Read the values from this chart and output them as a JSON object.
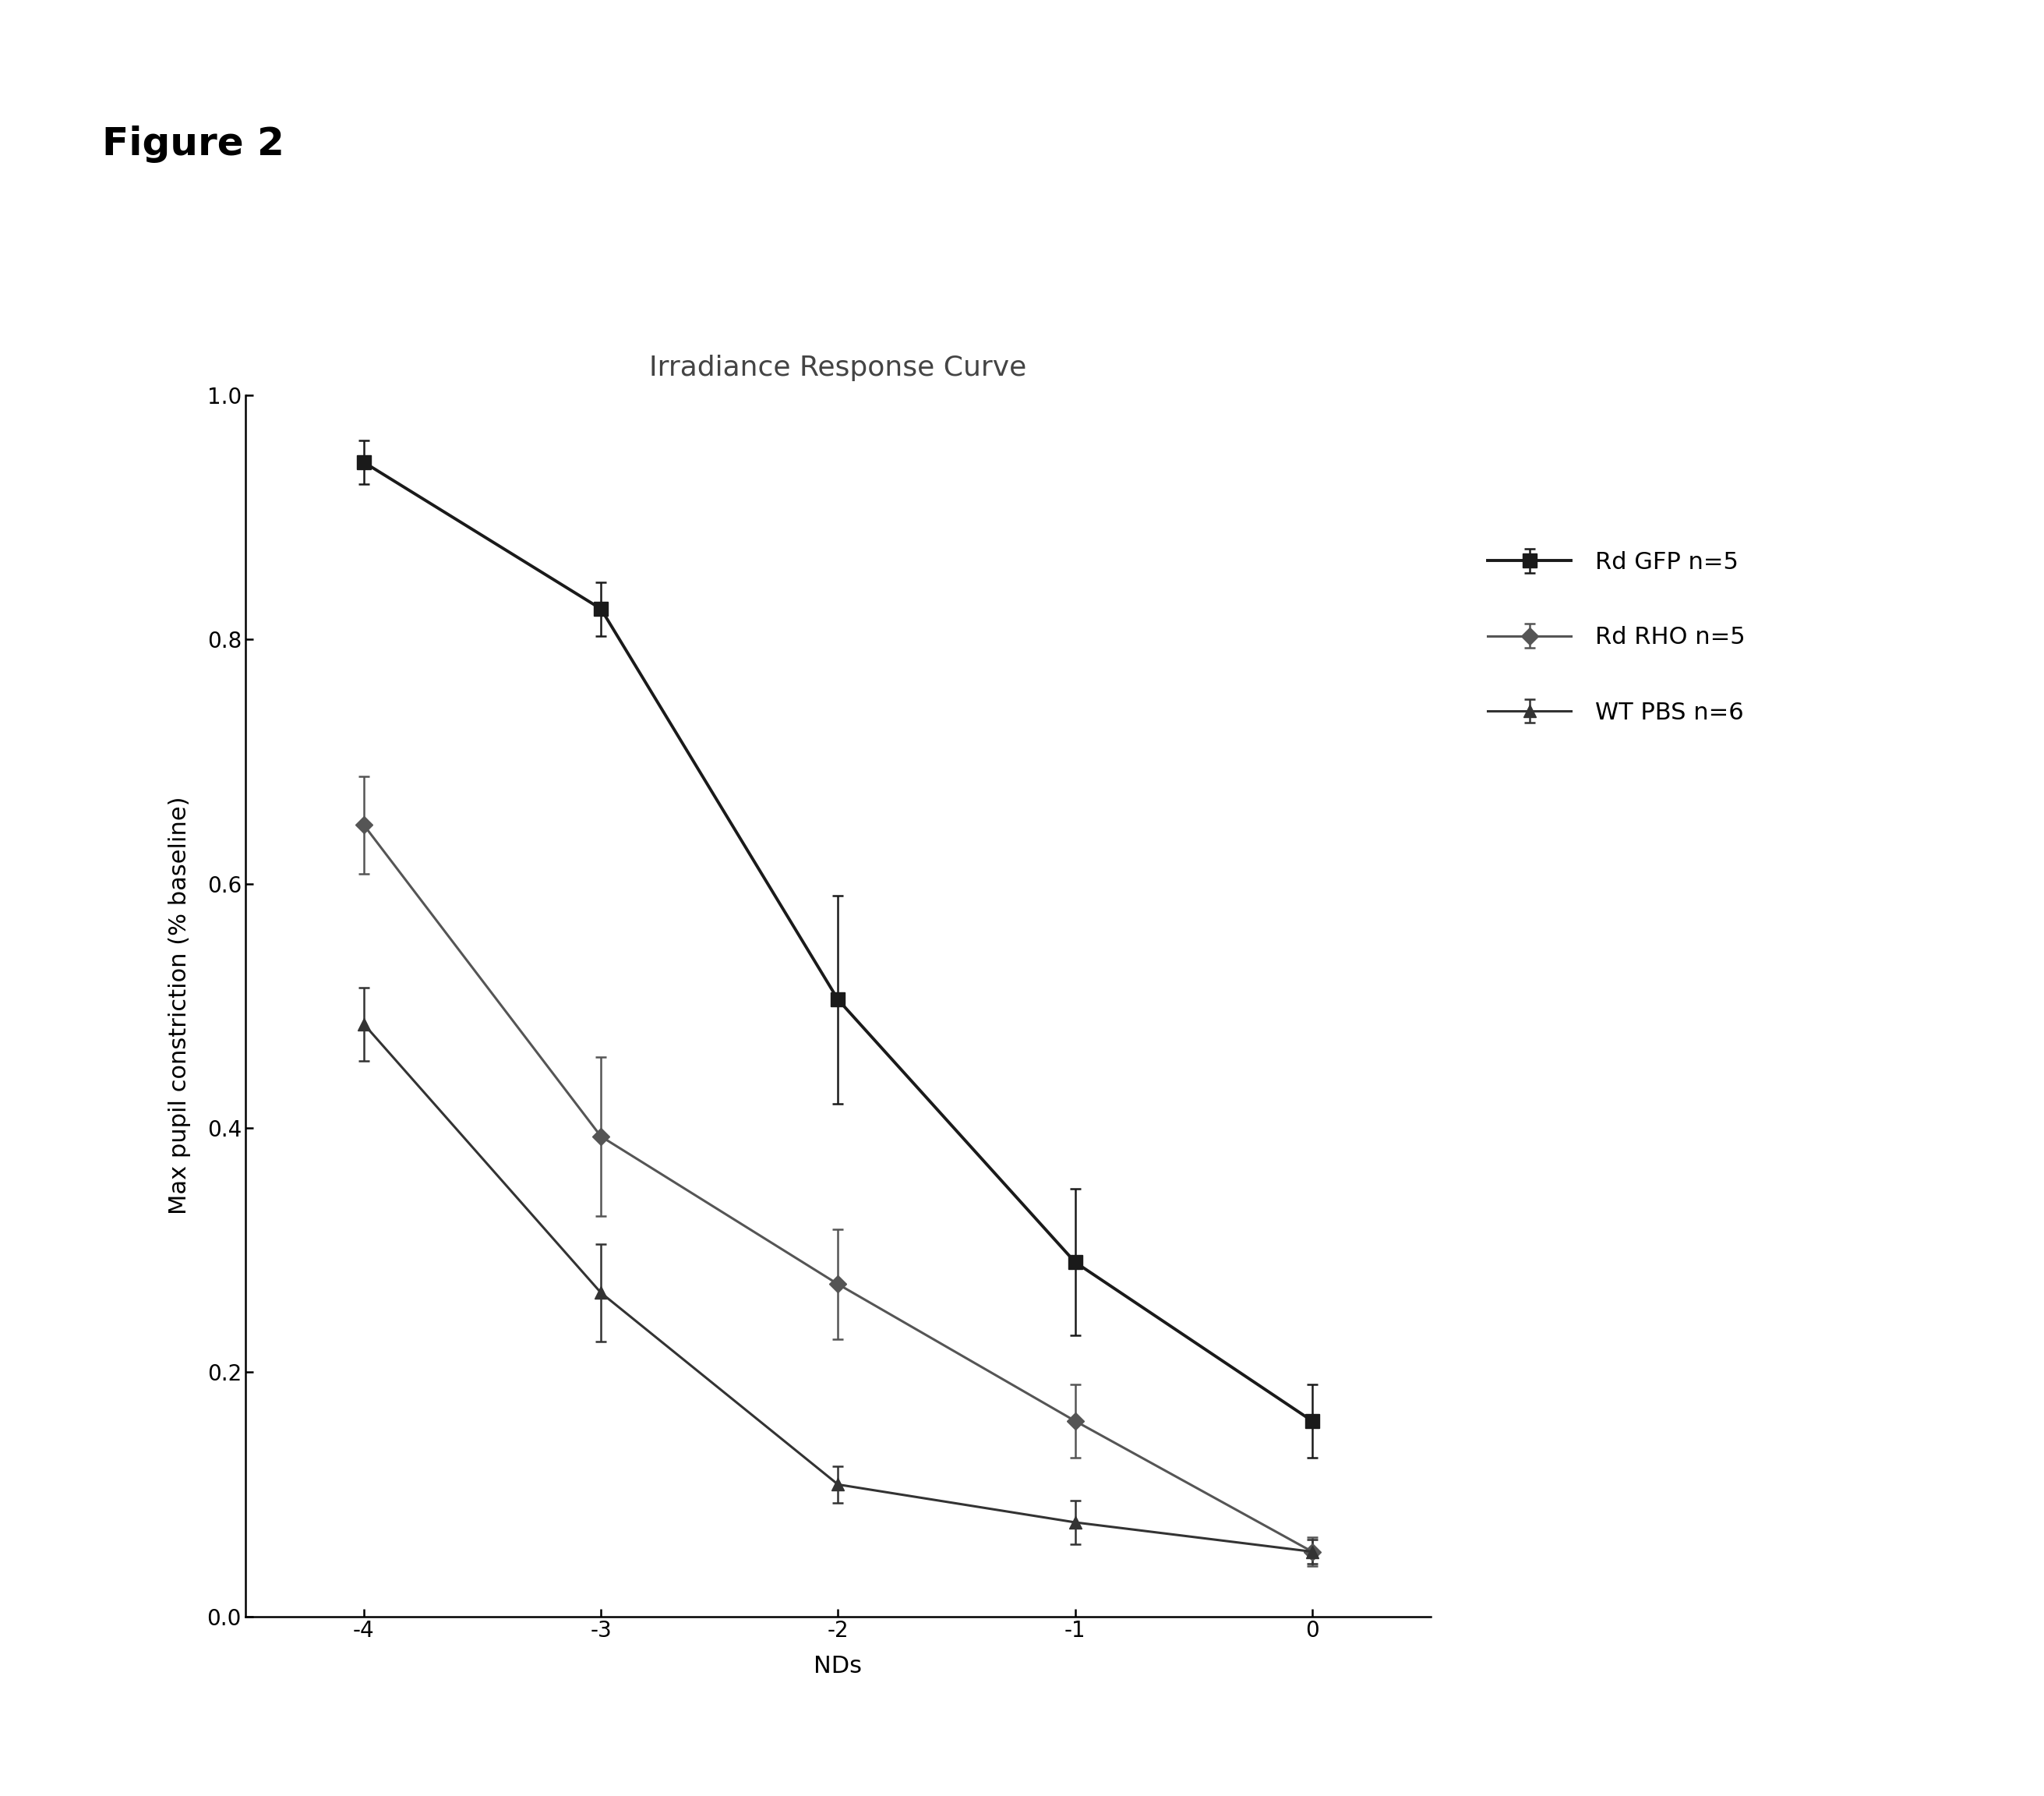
{
  "title": "Irradiance Response Curve",
  "figure_label": "Figure 2",
  "xlabel": "NDs",
  "ylabel": "Max pupil constriction (% baseline)",
  "x": [
    -4,
    -3,
    -2,
    -1,
    0
  ],
  "series": [
    {
      "label": "Rd GFP n=5",
      "y": [
        0.945,
        0.825,
        0.505,
        0.29,
        0.16
      ],
      "yerr": [
        0.018,
        0.022,
        0.085,
        0.06,
        0.03
      ],
      "color": "#1a1a1a",
      "marker": "s",
      "marker_size": 13,
      "linewidth": 2.8,
      "linestyle": "-"
    },
    {
      "label": "Rd RHO n=5",
      "y": [
        0.648,
        0.393,
        0.272,
        0.16,
        0.053
      ],
      "yerr": [
        0.04,
        0.065,
        0.045,
        0.03,
        0.012
      ],
      "color": "#555555",
      "marker": "D",
      "marker_size": 11,
      "linewidth": 2.2,
      "linestyle": "-"
    },
    {
      "label": "WT PBS n=6",
      "y": [
        0.485,
        0.265,
        0.108,
        0.077,
        0.053
      ],
      "yerr": [
        0.03,
        0.04,
        0.015,
        0.018,
        0.01
      ],
      "color": "#333333",
      "marker": "^",
      "marker_size": 11,
      "linewidth": 2.2,
      "linestyle": "-"
    }
  ],
  "ylim": [
    0.0,
    1.0
  ],
  "yticks": [
    0.0,
    0.2,
    0.4,
    0.6,
    0.8,
    1.0
  ],
  "xticks": [
    -4,
    -3,
    -2,
    -1,
    0
  ],
  "background_color": "#ffffff",
  "title_fontsize": 26,
  "label_fontsize": 22,
  "tick_fontsize": 20,
  "legend_fontsize": 22,
  "figure_label_fontsize": 36,
  "capsize": 5
}
